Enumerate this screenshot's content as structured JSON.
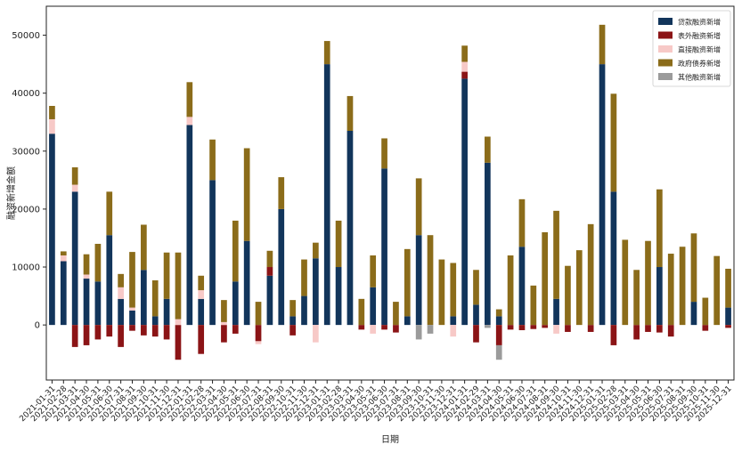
{
  "chart_data": {
    "type": "bar",
    "stacked": true,
    "title": "",
    "xlabel": "日期",
    "ylabel": "融资新增金额",
    "ylim": [
      -9500,
      55000
    ],
    "yticks": [
      0,
      10000,
      20000,
      30000,
      40000,
      50000
    ],
    "grid": false,
    "legend_position": "top-right",
    "categories": [
      "2021-01-31",
      "2021-02-28",
      "2021-03-31",
      "2021-04-30",
      "2021-05-31",
      "2021-06-30",
      "2021-07-31",
      "2021-08-31",
      "2021-09-30",
      "2021-10-31",
      "2021-11-30",
      "2021-12-31",
      "2022-01-31",
      "2022-02-28",
      "2022-03-31",
      "2022-04-30",
      "2022-05-31",
      "2022-06-30",
      "2022-07-31",
      "2022-08-31",
      "2022-09-30",
      "2022-10-31",
      "2022-11-30",
      "2022-12-31",
      "2023-01-31",
      "2023-02-28",
      "2023-03-31",
      "2023-04-30",
      "2023-05-31",
      "2023-06-30",
      "2023-07-31",
      "2023-08-31",
      "2023-09-30",
      "2023-10-31",
      "2023-11-30",
      "2023-12-31",
      "2024-01-31",
      "2024-02-29",
      "2024-03-31",
      "2024-04-30",
      "2024-05-31",
      "2024-06-30",
      "2024-07-31",
      "2024-08-31",
      "2024-09-30",
      "2024-10-31",
      "2024-11-30",
      "2024-12-31",
      "2025-01-31",
      "2025-02-28",
      "2025-03-31",
      "2025-04-30",
      "2025-05-31",
      "2025-06-30",
      "2025-07-31",
      "2025-08-31",
      "2025-09-30",
      "2025-10-31",
      "2025-11-30",
      "2025-12-31"
    ],
    "series": [
      {
        "name": "贷款融资新增",
        "color": "#12355b",
        "values": [
          33000,
          11000,
          23000,
          8000,
          7500,
          15500,
          4500,
          2500,
          9500,
          1500,
          4500,
          0,
          34500,
          4500,
          25000,
          0,
          7500,
          14500,
          0,
          8500,
          20000,
          1500,
          5000,
          11500,
          45000,
          10000,
          33500,
          0,
          6500,
          27000,
          0,
          1500,
          15500,
          0,
          0,
          1500,
          42500,
          3500,
          28000,
          1500,
          0,
          13500,
          0,
          0,
          4500,
          0,
          0,
          0,
          45000,
          23000,
          0,
          0,
          0,
          10000,
          0,
          0,
          4000,
          0,
          0,
          3000
        ]
      },
      {
        "name": "表外融资新增",
        "color": "#8b1416",
        "values": [
          0,
          0,
          -3800,
          -3500,
          -2500,
          -2000,
          -3800,
          -1000,
          -1800,
          -2000,
          -2500,
          -6000,
          0,
          -5000,
          0,
          -3000,
          -1500,
          0,
          -2800,
          1500,
          0,
          -1800,
          0,
          0,
          0,
          0,
          0,
          -800,
          0,
          -800,
          -1300,
          0,
          0,
          0,
          0,
          0,
          1200,
          -3000,
          0,
          -3500,
          -800,
          -900,
          -700,
          -500,
          0,
          -1200,
          0,
          -1200,
          0,
          -3500,
          0,
          -2500,
          -1200,
          -1300,
          -2000,
          0,
          0,
          -1000,
          0,
          -500
        ]
      },
      {
        "name": "直接融资新增",
        "color": "#f7c9c7",
        "values": [
          2500,
          1000,
          1200,
          700,
          0,
          0,
          2000,
          500,
          0,
          0,
          0,
          1000,
          1400,
          1500,
          0,
          500,
          0,
          0,
          -500,
          0,
          0,
          0,
          0,
          -3000,
          0,
          0,
          0,
          0,
          -1500,
          0,
          0,
          0,
          0,
          0,
          0,
          -2000,
          1700,
          0,
          0,
          0,
          0,
          0,
          0,
          0,
          -1500,
          0,
          0,
          0,
          0,
          0,
          0,
          0,
          0,
          0,
          0,
          0,
          0,
          0,
          0,
          0
        ]
      },
      {
        "name": "政府债券新增",
        "color": "#8b6c1a",
        "values": [
          2300,
          700,
          3000,
          3500,
          6500,
          7500,
          2300,
          9600,
          7800,
          6200,
          8000,
          11500,
          6000,
          2500,
          7000,
          3800,
          10500,
          16000,
          4000,
          2800,
          5500,
          2800,
          6300,
          2700,
          4000,
          8000,
          6000,
          4500,
          5500,
          5200,
          4000,
          11600,
          9800,
          15500,
          11300,
          9200,
          2800,
          6000,
          4500,
          1200,
          12000,
          8200,
          6800,
          16000,
          15200,
          10200,
          12900,
          17400,
          6800,
          16900,
          14700,
          9500,
          14500,
          13400,
          12300,
          13500,
          11800,
          4700,
          11900,
          6700
        ]
      },
      {
        "name": "其他融资新增",
        "color": "#9b9b9b",
        "values": [
          0,
          0,
          0,
          0,
          0,
          0,
          0,
          0,
          0,
          0,
          0,
          0,
          0,
          0,
          0,
          0,
          0,
          0,
          0,
          0,
          0,
          0,
          0,
          0,
          0,
          0,
          0,
          0,
          0,
          0,
          0,
          0,
          -2500,
          -1500,
          0,
          0,
          0,
          0,
          -500,
          -2500,
          0,
          0,
          0,
          0,
          0,
          0,
          0,
          0,
          0,
          0,
          0,
          0,
          0,
          0,
          0,
          0,
          0,
          0,
          0,
          0
        ]
      }
    ]
  }
}
